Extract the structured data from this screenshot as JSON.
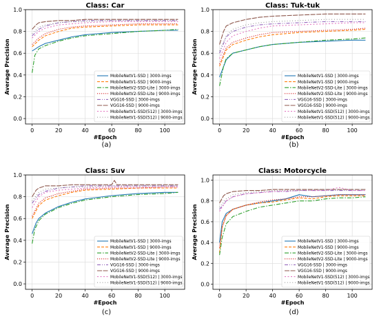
{
  "series_styles": [
    {
      "color": "#1f77b4",
      "dash": ""
    },
    {
      "color": "#ff7f0e",
      "dash": "4,2"
    },
    {
      "color": "#2ca02c",
      "dash": "6,2,1.5,2"
    },
    {
      "color": "#d62728",
      "dash": "1.2,1.8"
    },
    {
      "color": "#9467bd",
      "dash": "5,2,1,2,1,2"
    },
    {
      "color": "#8c564b",
      "dash": "7,1.5"
    },
    {
      "color": "#e377c2",
      "dash": "2,2.5"
    },
    {
      "color": "#7f7f7f",
      "dash": "0.8,3"
    }
  ],
  "chart_data": [
    {
      "type": "line",
      "title": "Class: Car",
      "caption": "(a)",
      "xlabel": "#Epoch",
      "ylabel": "Average Precision",
      "xlim": [
        -5,
        115
      ],
      "ylim": [
        -0.05,
        1.0
      ],
      "xticks": [
        0,
        20,
        40,
        60,
        80,
        100
      ],
      "yticks": [
        0.0,
        0.2,
        0.4,
        0.6,
        0.8,
        1.0
      ],
      "grid": true,
      "legend_position": "lower-right",
      "series": [
        {
          "name": "MobileNetV1-SSD | 3000-imgs",
          "x": [
            0,
            5,
            10,
            20,
            30,
            40,
            60,
            80,
            100,
            110
          ],
          "y": [
            0.62,
            0.66,
            0.69,
            0.72,
            0.75,
            0.77,
            0.79,
            0.8,
            0.81,
            0.81
          ]
        },
        {
          "name": "MobileNetV1-SSD | 9000-imgs",
          "x": [
            0,
            5,
            10,
            20,
            30,
            40,
            60,
            80,
            100,
            110
          ],
          "y": [
            0.66,
            0.72,
            0.76,
            0.8,
            0.83,
            0.84,
            0.85,
            0.86,
            0.86,
            0.86
          ]
        },
        {
          "name": "MobileNetV2-SSD-Lite | 3000-imgs",
          "x": [
            0,
            2,
            5,
            10,
            20,
            30,
            40,
            60,
            80,
            100,
            110
          ],
          "y": [
            0.42,
            0.58,
            0.64,
            0.67,
            0.71,
            0.74,
            0.76,
            0.78,
            0.8,
            0.81,
            0.82
          ]
        },
        {
          "name": "MobileNetV2-SSD-Lite | 9000-imgs",
          "x": [
            0,
            5,
            10,
            20,
            30,
            40,
            60,
            80,
            100,
            110
          ],
          "y": [
            0.68,
            0.74,
            0.78,
            0.82,
            0.84,
            0.85,
            0.86,
            0.87,
            0.87,
            0.87
          ]
        },
        {
          "name": "VGG16-SSD | 3000-imgs",
          "x": [
            0,
            5,
            10,
            20,
            30,
            40,
            60,
            80,
            100,
            110
          ],
          "y": [
            0.76,
            0.82,
            0.85,
            0.88,
            0.89,
            0.9,
            0.9,
            0.9,
            0.9,
            0.9
          ]
        },
        {
          "name": "VGG16-SSD | 9000-imgs",
          "x": [
            0,
            3,
            5,
            10,
            20,
            30,
            40,
            60,
            80,
            100,
            110
          ],
          "y": [
            0.82,
            0.86,
            0.88,
            0.89,
            0.9,
            0.9,
            0.91,
            0.91,
            0.91,
            0.91,
            0.91
          ]
        },
        {
          "name": "MobileNetV1-SSD(512) | 3000-imgs",
          "x": [
            0,
            5,
            10,
            20,
            30,
            40,
            60,
            80,
            100,
            110
          ],
          "y": [
            0.74,
            0.8,
            0.83,
            0.86,
            0.87,
            0.88,
            0.89,
            0.89,
            0.89,
            0.89
          ]
        },
        {
          "name": "MobileNetV1-SSD(512) | 9000-imgs",
          "x": [
            0,
            5,
            10,
            20,
            30,
            40,
            60,
            80,
            100,
            110
          ],
          "y": [
            0.78,
            0.84,
            0.86,
            0.88,
            0.89,
            0.89,
            0.9,
            0.9,
            0.9,
            0.9
          ]
        }
      ]
    },
    {
      "type": "line",
      "title": "Class: Tuk-tuk",
      "caption": "(b)",
      "xlabel": "#Epoch",
      "ylabel": "Average Precision",
      "xlim": [
        -5,
        115
      ],
      "ylim": [
        -0.05,
        1.0
      ],
      "xticks": [
        0,
        20,
        40,
        60,
        80,
        100
      ],
      "yticks": [
        0.0,
        0.2,
        0.4,
        0.6,
        0.8,
        1.0
      ],
      "grid": true,
      "legend_position": "lower-right",
      "series": [
        {
          "name": "MobileNetV1-SSD | 3000-imgs",
          "x": [
            0,
            5,
            10,
            20,
            30,
            40,
            60,
            80,
            100,
            110
          ],
          "y": [
            0.38,
            0.54,
            0.6,
            0.63,
            0.66,
            0.68,
            0.7,
            0.71,
            0.72,
            0.72
          ]
        },
        {
          "name": "MobileNetV1-SSD | 9000-imgs",
          "x": [
            0,
            5,
            10,
            20,
            30,
            40,
            60,
            80,
            100,
            110
          ],
          "y": [
            0.48,
            0.63,
            0.68,
            0.72,
            0.75,
            0.77,
            0.79,
            0.8,
            0.81,
            0.82
          ]
        },
        {
          "name": "MobileNetV2-SSD-Lite | 3000-imgs",
          "x": [
            0,
            3,
            5,
            10,
            20,
            30,
            40,
            60,
            80,
            100,
            110
          ],
          "y": [
            0.3,
            0.48,
            0.55,
            0.6,
            0.63,
            0.66,
            0.68,
            0.7,
            0.72,
            0.73,
            0.74
          ]
        },
        {
          "name": "MobileNetV2-SSD-Lite | 9000-imgs",
          "x": [
            0,
            5,
            10,
            20,
            30,
            40,
            60,
            80,
            100,
            110
          ],
          "y": [
            0.5,
            0.65,
            0.7,
            0.74,
            0.77,
            0.79,
            0.8,
            0.81,
            0.82,
            0.83
          ]
        },
        {
          "name": "VGG16-SSD | 3000-imgs",
          "x": [
            0,
            5,
            10,
            20,
            30,
            40,
            60,
            80,
            100,
            110
          ],
          "y": [
            0.6,
            0.75,
            0.8,
            0.84,
            0.86,
            0.87,
            0.88,
            0.89,
            0.89,
            0.89
          ]
        },
        {
          "name": "VGG16-SSD | 9000-imgs",
          "x": [
            0,
            3,
            5,
            10,
            20,
            30,
            40,
            60,
            80,
            100,
            110
          ],
          "y": [
            0.68,
            0.8,
            0.85,
            0.88,
            0.91,
            0.93,
            0.94,
            0.95,
            0.96,
            0.96,
            0.96
          ]
        },
        {
          "name": "MobileNetV1-SSD(512) | 3000-imgs",
          "x": [
            0,
            5,
            10,
            20,
            30,
            40,
            60,
            80,
            100,
            110
          ],
          "y": [
            0.55,
            0.7,
            0.76,
            0.8,
            0.83,
            0.85,
            0.86,
            0.87,
            0.88,
            0.88
          ]
        },
        {
          "name": "MobileNetV1-SSD(512) | 9000-imgs",
          "x": [
            0,
            5,
            10,
            20,
            30,
            40,
            60,
            80,
            100,
            110
          ],
          "y": [
            0.62,
            0.76,
            0.82,
            0.86,
            0.88,
            0.89,
            0.9,
            0.91,
            0.91,
            0.91
          ]
        }
      ]
    },
    {
      "type": "line",
      "title": "Class: Suv",
      "caption": "(c)",
      "xlabel": "#Epoch",
      "ylabel": "Average Precision",
      "xlim": [
        -5,
        115
      ],
      "ylim": [
        -0.05,
        1.0
      ],
      "xticks": [
        0,
        20,
        40,
        60,
        80,
        100
      ],
      "yticks": [
        0.0,
        0.2,
        0.4,
        0.6,
        0.8,
        1.0
      ],
      "grid": true,
      "legend_position": "lower-right",
      "series": [
        {
          "name": "MobileNetV1-SSD | 3000-imgs",
          "x": [
            0,
            3,
            5,
            10,
            20,
            30,
            40,
            60,
            80,
            100,
            110
          ],
          "y": [
            0.46,
            0.56,
            0.6,
            0.65,
            0.71,
            0.75,
            0.78,
            0.81,
            0.83,
            0.84,
            0.84
          ]
        },
        {
          "name": "MobileNetV1-SSD | 9000-imgs",
          "x": [
            0,
            5,
            10,
            20,
            30,
            40,
            60,
            80,
            100,
            110
          ],
          "y": [
            0.6,
            0.72,
            0.77,
            0.81,
            0.84,
            0.86,
            0.87,
            0.88,
            0.88,
            0.88
          ]
        },
        {
          "name": "MobileNetV2-SSD-Lite | 3000-imgs",
          "x": [
            0,
            2,
            5,
            10,
            20,
            30,
            40,
            60,
            80,
            100,
            110
          ],
          "y": [
            0.37,
            0.5,
            0.58,
            0.64,
            0.7,
            0.74,
            0.77,
            0.8,
            0.82,
            0.83,
            0.84
          ]
        },
        {
          "name": "MobileNetV2-SSD-Lite | 9000-imgs",
          "x": [
            0,
            5,
            10,
            20,
            30,
            40,
            60,
            80,
            100,
            110
          ],
          "y": [
            0.62,
            0.74,
            0.79,
            0.83,
            0.85,
            0.87,
            0.88,
            0.88,
            0.89,
            0.89
          ]
        },
        {
          "name": "VGG16-SSD | 3000-imgs",
          "x": [
            0,
            5,
            10,
            20,
            30,
            40,
            60,
            80,
            100,
            110
          ],
          "y": [
            0.74,
            0.82,
            0.85,
            0.88,
            0.89,
            0.9,
            0.9,
            0.9,
            0.9,
            0.9
          ]
        },
        {
          "name": "VGG16-SSD | 9000-imgs",
          "x": [
            0,
            3,
            5,
            10,
            20,
            30,
            40,
            60,
            62,
            64,
            80,
            100,
            110
          ],
          "y": [
            0.8,
            0.86,
            0.88,
            0.9,
            0.9,
            0.91,
            0.91,
            0.91,
            0.95,
            0.91,
            0.91,
            0.91,
            0.91
          ]
        },
        {
          "name": "MobileNetV1-SSD(512) | 3000-imgs",
          "x": [
            0,
            5,
            10,
            20,
            30,
            40,
            60,
            80,
            100,
            110
          ],
          "y": [
            0.7,
            0.8,
            0.84,
            0.86,
            0.87,
            0.88,
            0.89,
            0.89,
            0.89,
            0.89
          ]
        },
        {
          "name": "MobileNetV1-SSD(512) | 9000-imgs",
          "x": [
            0,
            5,
            10,
            20,
            30,
            40,
            60,
            80,
            100,
            110
          ],
          "y": [
            0.76,
            0.84,
            0.87,
            0.88,
            0.89,
            0.89,
            0.9,
            0.9,
            0.9,
            0.9
          ]
        }
      ]
    },
    {
      "type": "line",
      "title": "Class: Motorcycle",
      "caption": "(d)",
      "xlabel": "#Epoch",
      "ylabel": "Average Precision",
      "xlim": [
        -5,
        115
      ],
      "ylim": [
        -0.05,
        1.05
      ],
      "xticks": [
        0,
        20,
        40,
        60,
        80,
        100
      ],
      "yticks": [
        0.0,
        0.2,
        0.4,
        0.6,
        0.8,
        1.0
      ],
      "grid": true,
      "legend_position": "lower-right",
      "series": [
        {
          "name": "MobileNetV1-SSD | 3000-imgs",
          "x": [
            0,
            2,
            5,
            10,
            20,
            30,
            40,
            50,
            60,
            70,
            80,
            90,
            100,
            110
          ],
          "y": [
            0.4,
            0.6,
            0.68,
            0.72,
            0.76,
            0.78,
            0.8,
            0.82,
            0.86,
            0.84,
            0.85,
            0.86,
            0.86,
            0.86
          ]
        },
        {
          "name": "MobileNetV1-SSD | 9000-imgs",
          "x": [
            0,
            2,
            5,
            10,
            20,
            30,
            40,
            50,
            60,
            70,
            80,
            90,
            100,
            110
          ],
          "y": [
            0.3,
            0.55,
            0.66,
            0.72,
            0.76,
            0.78,
            0.79,
            0.81,
            0.83,
            0.82,
            0.84,
            0.85,
            0.85,
            0.85
          ]
        },
        {
          "name": "MobileNetV2-SSD-Lite | 3000-imgs",
          "x": [
            0,
            2,
            5,
            10,
            20,
            30,
            40,
            50,
            60,
            70,
            80,
            90,
            100,
            110
          ],
          "y": [
            0.28,
            0.45,
            0.58,
            0.65,
            0.7,
            0.74,
            0.76,
            0.78,
            0.8,
            0.8,
            0.82,
            0.83,
            0.83,
            0.84
          ]
        },
        {
          "name": "MobileNetV2-SSD-Lite | 9000-imgs",
          "x": [
            0,
            2,
            5,
            10,
            20,
            30,
            40,
            50,
            60,
            70,
            80,
            90,
            100,
            110
          ],
          "y": [
            0.35,
            0.55,
            0.66,
            0.72,
            0.76,
            0.79,
            0.81,
            0.82,
            0.84,
            0.84,
            0.85,
            0.86,
            0.86,
            0.86
          ]
        },
        {
          "name": "VGG16-SSD | 3000-imgs",
          "x": [
            0,
            5,
            10,
            20,
            30,
            40,
            50,
            60,
            80,
            100,
            110
          ],
          "y": [
            0.72,
            0.8,
            0.84,
            0.87,
            0.88,
            0.89,
            0.89,
            0.9,
            0.9,
            0.9,
            0.9
          ]
        },
        {
          "name": "VGG16-SSD | 9000-imgs",
          "x": [
            0,
            3,
            5,
            10,
            20,
            30,
            40,
            60,
            80,
            100,
            110
          ],
          "y": [
            0.78,
            0.85,
            0.87,
            0.89,
            0.9,
            0.9,
            0.91,
            0.91,
            0.91,
            0.91,
            0.91
          ]
        },
        {
          "name": "MobileNetV1-SSD(512) | 3000-imgs",
          "x": [
            0,
            5,
            10,
            20,
            30,
            40,
            60,
            80,
            90,
            100,
            110
          ],
          "y": [
            0.7,
            0.8,
            0.84,
            0.87,
            0.88,
            0.89,
            0.9,
            0.9,
            0.93,
            0.9,
            0.9
          ]
        },
        {
          "name": "MobileNetV1-SSD(512) | 9000-imgs",
          "x": [
            0,
            5,
            10,
            20,
            30,
            40,
            60,
            80,
            100,
            110
          ],
          "y": [
            0.74,
            0.82,
            0.86,
            0.88,
            0.89,
            0.9,
            0.9,
            0.91,
            0.91,
            0.91
          ]
        }
      ]
    }
  ]
}
